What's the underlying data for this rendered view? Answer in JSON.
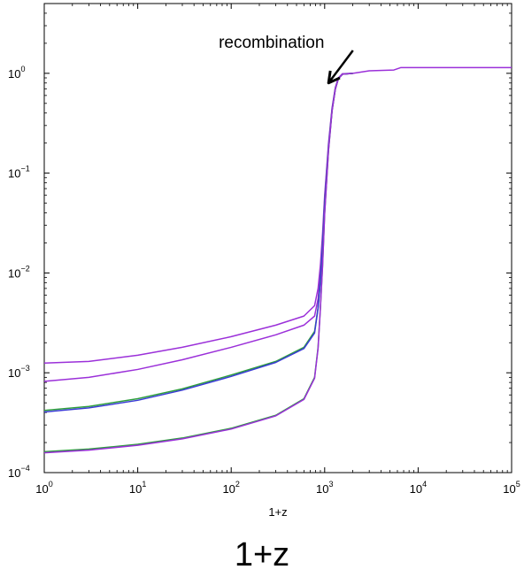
{
  "chart_data": {
    "type": "line",
    "title": "",
    "xlabel": "1+z",
    "ylabel": "",
    "x_scale": "log",
    "y_scale": "log",
    "xlim": [
      1,
      100000
    ],
    "ylim": [
      0.0001,
      5
    ],
    "grid": false,
    "x_ticks": [
      {
        "value": 1,
        "base": "10",
        "exp": "0"
      },
      {
        "value": 10,
        "base": "10",
        "exp": "1"
      },
      {
        "value": 100,
        "base": "10",
        "exp": "2"
      },
      {
        "value": 1000,
        "base": "10",
        "exp": "3"
      },
      {
        "value": 10000,
        "base": "10",
        "exp": "4"
      },
      {
        "value": 100000,
        "base": "10",
        "exp": "5"
      }
    ],
    "y_ticks": [
      {
        "value": 0.0001,
        "base": "10",
        "exp": "−4"
      },
      {
        "value": 0.001,
        "base": "10",
        "exp": "−3"
      },
      {
        "value": 0.01,
        "base": "10",
        "exp": "−2"
      },
      {
        "value": 0.1,
        "base": "10",
        "exp": "−1"
      },
      {
        "value": 1,
        "base": "10",
        "exp": "0"
      }
    ],
    "series": [
      {
        "color": "#9B30D9",
        "x": [
          1,
          3,
          10,
          30,
          100,
          300,
          600,
          780,
          850,
          900,
          950,
          1000,
          1100,
          1200,
          1300,
          1400,
          1550,
          2000,
          3000,
          5500,
          6500,
          10000,
          100000
        ],
        "y": [
          0.00125,
          0.0013,
          0.0015,
          0.0018,
          0.0023,
          0.003,
          0.0037,
          0.0047,
          0.007,
          0.012,
          0.025,
          0.06,
          0.2,
          0.45,
          0.72,
          0.9,
          0.99,
          1.0,
          1.06,
          1.08,
          1.14,
          1.14,
          1.14
        ]
      },
      {
        "color": "#9B30D9",
        "x": [
          1,
          3,
          10,
          30,
          100,
          300,
          600,
          780,
          850,
          900,
          950,
          1000,
          1100,
          1200,
          1300,
          1400,
          1550,
          2000
        ],
        "y": [
          0.00082,
          0.0009,
          0.00108,
          0.00135,
          0.0018,
          0.0024,
          0.003,
          0.0037,
          0.0055,
          0.01,
          0.021,
          0.055,
          0.19,
          0.44,
          0.71,
          0.89,
          0.99,
          1.0
        ]
      },
      {
        "color": "#2E9E3E",
        "x": [
          1,
          3,
          10,
          30,
          100,
          300,
          600,
          780,
          850,
          900,
          950,
          1000,
          1100,
          1200,
          1300,
          1400,
          1550,
          2000
        ],
        "y": [
          0.00042,
          0.00046,
          0.00055,
          0.00069,
          0.00095,
          0.0013,
          0.0018,
          0.0026,
          0.0045,
          0.0085,
          0.019,
          0.05,
          0.18,
          0.43,
          0.7,
          0.88,
          0.98,
          1.0
        ]
      },
      {
        "color": "#3B3BD6",
        "x": [
          1,
          3,
          10,
          30,
          100,
          300,
          600,
          780,
          850,
          900,
          950,
          1000,
          1100,
          1200,
          1300,
          1400,
          1550,
          2000
        ],
        "y": [
          0.000405,
          0.000445,
          0.00053,
          0.00067,
          0.00092,
          0.00127,
          0.00175,
          0.0025,
          0.0044,
          0.0083,
          0.0185,
          0.049,
          0.18,
          0.43,
          0.7,
          0.88,
          0.98,
          1.0
        ]
      },
      {
        "color": "#2E9E3E",
        "x": [
          1,
          3,
          10,
          30,
          100,
          300,
          600,
          780,
          850,
          900,
          950,
          1000,
          1100,
          1200,
          1300,
          1400,
          1550,
          2000
        ],
        "y": [
          0.000162,
          0.000172,
          0.000192,
          0.000222,
          0.000278,
          0.000375,
          0.00055,
          0.0009,
          0.0018,
          0.0045,
          0.012,
          0.04,
          0.17,
          0.42,
          0.69,
          0.88,
          0.98,
          1.0
        ]
      },
      {
        "color": "#9B30D9",
        "x": [
          1,
          3,
          10,
          30,
          100,
          300,
          600,
          780,
          850,
          900,
          950,
          1000,
          1100,
          1200,
          1300,
          1400,
          1550,
          2000
        ],
        "y": [
          0.000158,
          0.000168,
          0.000188,
          0.000218,
          0.000273,
          0.00037,
          0.00054,
          0.00088,
          0.00175,
          0.0044,
          0.0118,
          0.039,
          0.17,
          0.42,
          0.69,
          0.88,
          0.98,
          1.0
        ]
      }
    ],
    "annotation": {
      "text": "recombination",
      "text_x": 270,
      "text_y": 1.8,
      "arrow_tip_x": 1100,
      "arrow_tip_y": 0.8
    }
  },
  "footer_label": "1+z"
}
